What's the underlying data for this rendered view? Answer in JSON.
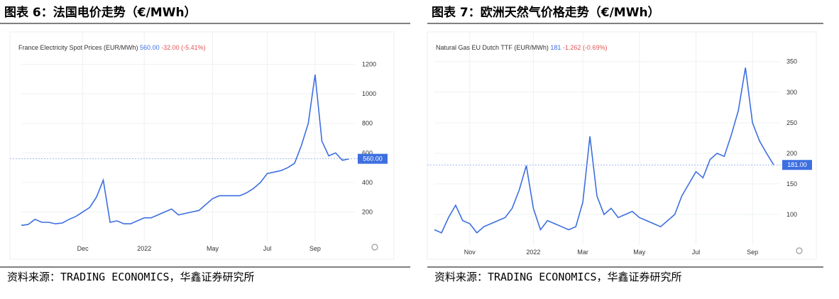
{
  "chart_data": [
    {
      "type": "line",
      "title": "图表 6：法国电价走势（€/MWh）",
      "subtitle": "France Electricity Spot Prices (EUR/MWh)",
      "last_label": "560.00",
      "change": "-32.00 (-5.41%)",
      "source": "资料来源：TRADING ECONOMICS，华鑫证券研究所",
      "color": "#3d6fe0",
      "categories": [
        null,
        null,
        null,
        null,
        null,
        null,
        null,
        null,
        null,
        "Dec",
        null,
        null,
        null,
        null,
        null,
        null,
        null,
        null,
        "2022",
        null,
        null,
        null,
        null,
        null,
        null,
        null,
        null,
        null,
        "May",
        null,
        null,
        null,
        null,
        null,
        null,
        null,
        "Jul",
        null,
        null,
        null,
        null,
        null,
        null,
        "Sep",
        null,
        null,
        null,
        null,
        null
      ],
      "values": [
        109,
        115,
        150,
        130,
        130,
        120,
        125,
        150,
        170,
        200,
        230,
        300,
        415,
        130,
        140,
        120,
        120,
        140,
        160,
        160,
        180,
        200,
        220,
        180,
        190,
        200,
        210,
        250,
        290,
        310,
        310,
        310,
        310,
        330,
        360,
        400,
        460,
        470,
        480,
        500,
        530,
        650,
        800,
        1130,
        680,
        580,
        600,
        550,
        560
      ],
      "ylim": [
        0,
        1400
      ],
      "yticks": [
        200,
        400,
        600,
        800,
        1000,
        1200
      ],
      "grid": true
    },
    {
      "type": "line",
      "title": "图表 7：欧洲天然气价格走势（€/MWh）",
      "subtitle": "Natural Gas EU Dutch TTF (EUR/MWh)",
      "last_label": "181",
      "last_box": "181.00",
      "change": "-1.262 (-0.69%)",
      "source": "资料来源：TRADING ECONOMICS，华鑫证券研究所",
      "color": "#3d6fe0",
      "categories": [
        null,
        null,
        null,
        null,
        null,
        "Nov",
        null,
        null,
        null,
        null,
        null,
        null,
        null,
        null,
        "2022",
        null,
        null,
        null,
        null,
        null,
        null,
        "Mar",
        null,
        null,
        null,
        null,
        null,
        null,
        null,
        "May",
        null,
        null,
        null,
        null,
        null,
        null,
        null,
        "Jul",
        null,
        null,
        null,
        null,
        null,
        null,
        null,
        "Sep",
        null,
        null,
        null
      ],
      "values": [
        75,
        70,
        95,
        115,
        90,
        85,
        70,
        80,
        85,
        90,
        95,
        110,
        140,
        180,
        110,
        75,
        90,
        85,
        80,
        75,
        80,
        120,
        228,
        130,
        100,
        110,
        95,
        100,
        105,
        95,
        90,
        85,
        80,
        90,
        100,
        130,
        150,
        170,
        160,
        190,
        200,
        195,
        230,
        270,
        340,
        250,
        220,
        200,
        181
      ],
      "ylim": [
        50,
        395
      ],
      "yticks": [
        100,
        150,
        200,
        250,
        300,
        350
      ],
      "grid": true
    }
  ]
}
